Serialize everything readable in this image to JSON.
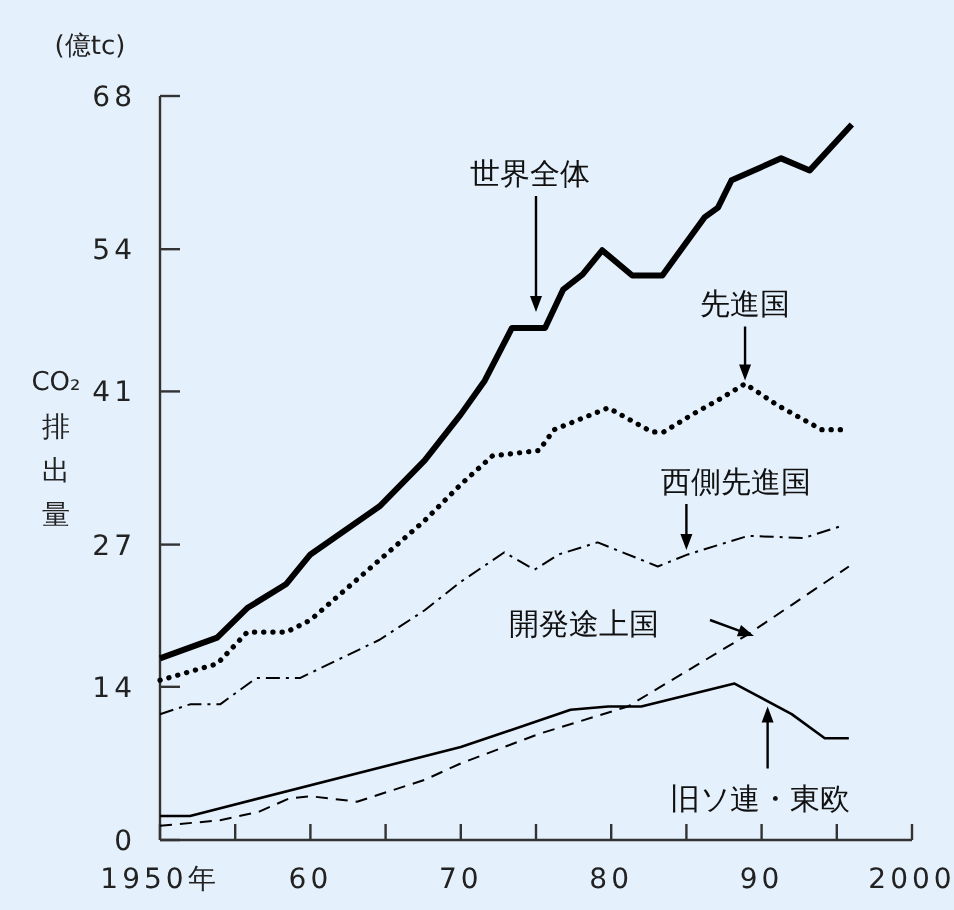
{
  "chart_data": {
    "type": "line",
    "ylabel": "CO₂排出量",
    "xlim": [
      1950,
      2000
    ],
    "ylim": [
      0,
      68
    ],
    "annotations": [
      "(億tc)",
      "世界全体",
      {
        "text": "先進国",
        "x": 1988.9,
        "y": 42
      },
      {
        "text": "西側先進国",
        "x": 1985,
        "y": 26.5
      },
      "開発途上国",
      {
        "text": "旧ソ連・東欧",
        "x": 1990.4,
        "y": 12.2
      }
    ],
    "xticks": [
      {
        "value": 1950,
        "label": "1950年"
      },
      {
        "value": 1955,
        "label": null
      },
      {
        "value": 1960,
        "label": "60"
      },
      {
        "value": 1965,
        "label": null
      },
      {
        "value": 1970,
        "label": "70"
      },
      {
        "value": 1975,
        "label": null
      },
      {
        "value": 1980,
        "label": "80"
      },
      {
        "value": 1985,
        "label": null
      },
      {
        "value": 1990,
        "label": "90"
      },
      {
        "value": 1995,
        "label": null
      },
      {
        "value": 2000,
        "label": "2000"
      }
    ],
    "yticks": [
      0,
      14,
      27,
      41,
      54,
      68
    ],
    "grid": false,
    "marker": "none",
    "series": [
      {
        "color": "#000000",
        "line_style": "solid",
        "x": [
          1950,
          1953.8,
          1955.8,
          1958.4,
          1960,
          1964.6,
          1967.6,
          1970,
          1971.6,
          1973.4,
          1975.6,
          1976.8,
          1978.1,
          1979.4,
          1981.4,
          1983.4,
          1986.2,
          1987.1,
          1988,
          1991.3,
          1993.2,
          1996
        ],
        "values": [
          16.6,
          18.5,
          21.2,
          23.4,
          26.1,
          30.5,
          34.7,
          38.9,
          42,
          46.8,
          46.8,
          50.3,
          51.7,
          53.9,
          51.6,
          51.6,
          56.9,
          57.8,
          60.3,
          62.3,
          61.2,
          65.4
        ]
      },
      {
        "color": "#000000",
        "line_style": "dotted",
        "x": [
          1950,
          1953.8,
          1955.8,
          1958.4,
          1960,
          1964.6,
          1967.6,
          1970,
          1972.1,
          1975.2,
          1976.2,
          1979.8,
          1982.7,
          1983.5,
          1985.4,
          1987.1,
          1988.9,
          1991.1,
          1994,
          1995.3
        ],
        "values": [
          14.6,
          16.1,
          19,
          19,
          20.1,
          25.6,
          29.2,
          32.5,
          35.1,
          35.6,
          37.5,
          39.5,
          37.3,
          37.3,
          38.9,
          40.2,
          41.7,
          39.7,
          37.5,
          37.5
        ]
      },
      {
        "color": "#000000",
        "line_style": "dashdot",
        "x": [
          1950,
          1952,
          1954,
          1956.4,
          1959.3,
          1964.6,
          1967.6,
          1970,
          1972.9,
          1974.9,
          1976.5,
          1979.1,
          1983.1,
          1985.1,
          1989.1,
          1992.8,
          1995.3
        ],
        "values": [
          11.5,
          12.4,
          12.4,
          14.8,
          14.8,
          18.3,
          21,
          23.6,
          26.3,
          24.7,
          26.1,
          27.2,
          25,
          26.1,
          27.8,
          27.6,
          28.7
        ]
      },
      {
        "color": "#000000",
        "line_style": "dashed",
        "x": [
          1950,
          1954,
          1956.6,
          1958.6,
          1960,
          1963.1,
          1967.6,
          1970,
          1975.2,
          1981.1,
          1989.1,
          1995.8
        ],
        "values": [
          1.3,
          1.8,
          2.6,
          3.8,
          4,
          3.5,
          5.5,
          7,
          9.7,
          12.2,
          18.8,
          25
        ]
      },
      {
        "color": "#000000",
        "line_style": "solid",
        "x": [
          1950,
          1952,
          1970,
          1977.3,
          1979.8,
          1982,
          1988.2,
          1989.7,
          1992,
          1994.2,
          1995.8
        ],
        "values": [
          2.2,
          2.2,
          8.5,
          11.9,
          12.2,
          12.2,
          14.3,
          13.2,
          11.5,
          9.3,
          9.3
        ]
      }
    ]
  }
}
